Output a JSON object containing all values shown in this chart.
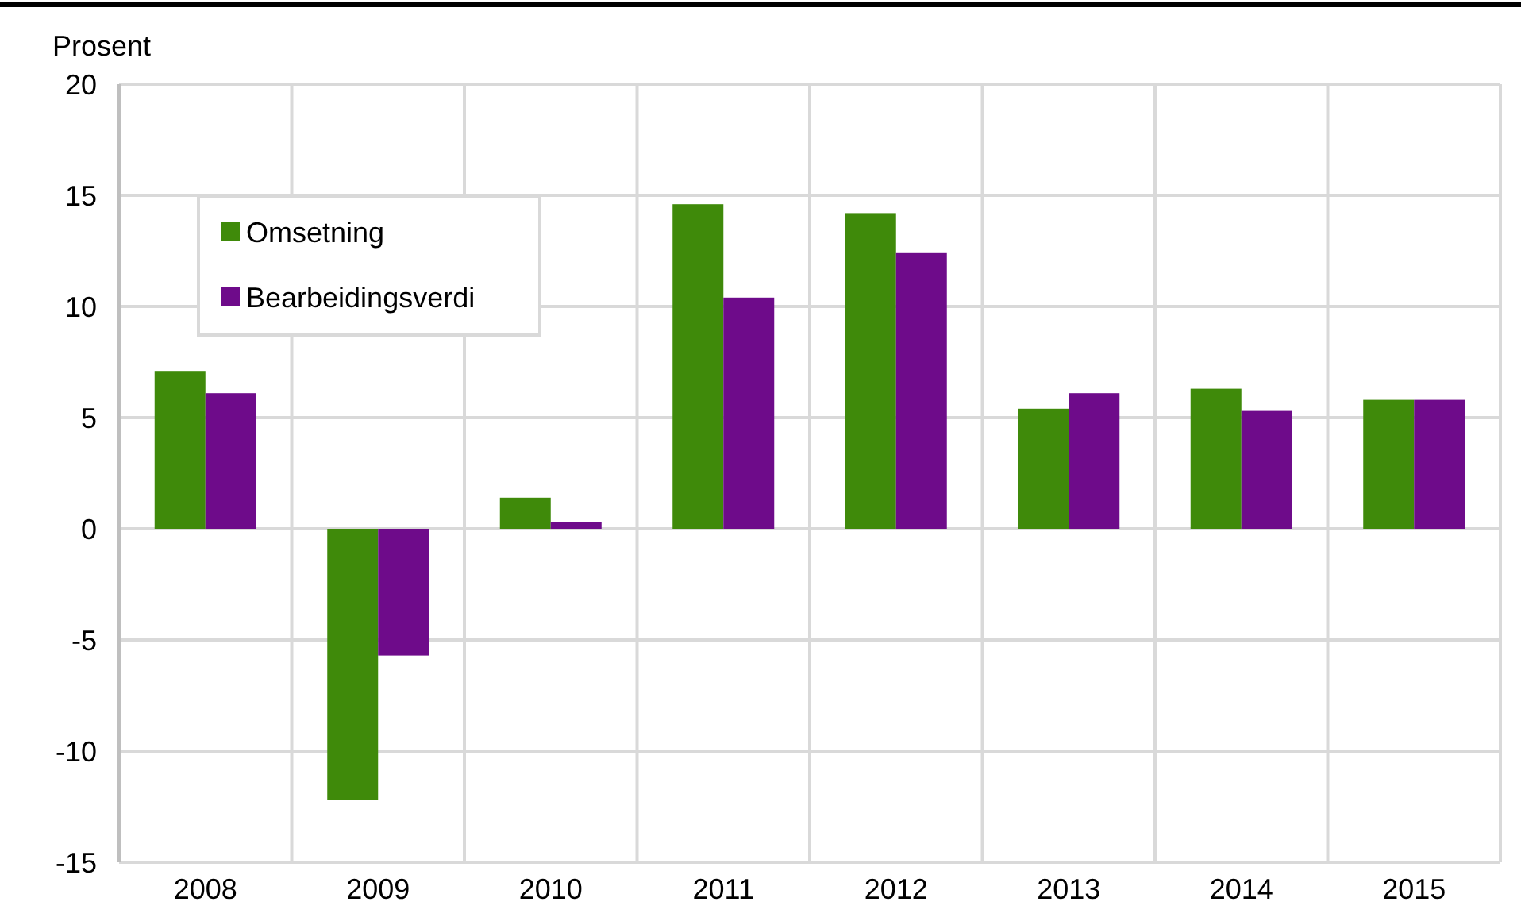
{
  "chart_data": {
    "type": "bar",
    "ylabel": "Prosent",
    "categories": [
      "2008",
      "2009",
      "2010",
      "2011",
      "2012",
      "2013",
      "2014",
      "2015"
    ],
    "series": [
      {
        "name": "Omsetning",
        "color": "#3f8a0a",
        "values": [
          7.1,
          -12.2,
          1.4,
          14.6,
          14.2,
          5.4,
          6.3,
          5.8
        ]
      },
      {
        "name": "Bearbeidingsverdi",
        "color": "#6e0b8a",
        "values": [
          6.1,
          -5.7,
          0.3,
          10.4,
          12.4,
          6.1,
          5.3,
          5.8
        ]
      }
    ],
    "ylim": [
      -15,
      20
    ],
    "yticks": [
      -15,
      -10,
      -5,
      0,
      5,
      10,
      15,
      20
    ],
    "grid": true,
    "legend": "top left"
  }
}
